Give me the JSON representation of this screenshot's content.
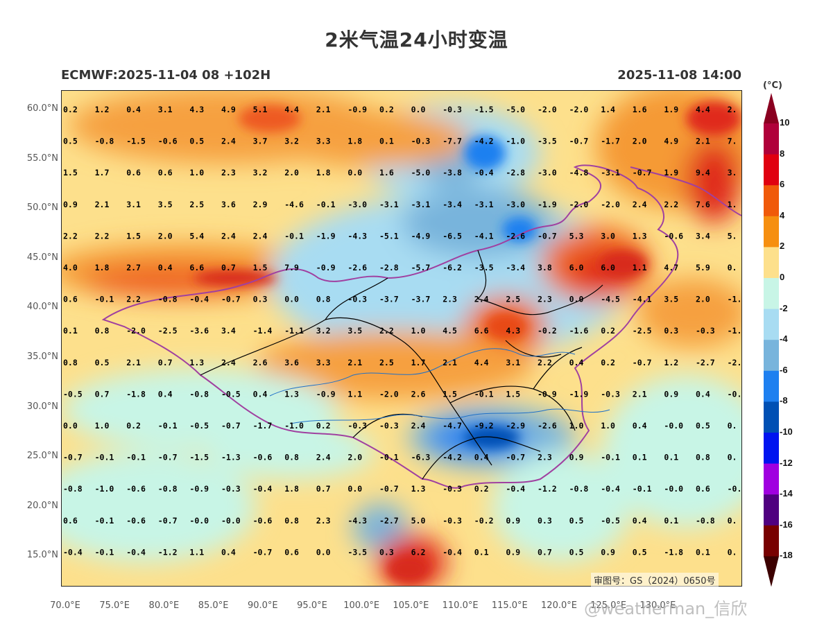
{
  "title": "2米气温24小时变温",
  "subtitle_left": "ECMWF:2025-11-04 08 +102H",
  "subtitle_right": "2025-11-08 14:00",
  "unit": "(°C)",
  "approval_number": "审图号：GS（2024）0650号",
  "watermark": "@weatherman_信欣",
  "lat_labels": [
    "60.0°N",
    "55.0°N",
    "50.0°N",
    "45.0°N",
    "40.0°N",
    "35.0°N",
    "30.0°N",
    "25.0°N",
    "20.0°N",
    "15.0°N"
  ],
  "lon_labels": [
    "70.0°E",
    "75.0°E",
    "80.0°E",
    "85.0°E",
    "90.0°E",
    "95.0°E",
    "100.0°E",
    "105.0°E",
    "110.0°E",
    "115.0°E",
    "120.0°E",
    "125.0°E",
    "130.0°E"
  ],
  "colorbar": {
    "labels": [
      "10",
      "8",
      "6",
      "4",
      "2",
      "0",
      "-2",
      "-4",
      "-6",
      "-8",
      "-10",
      "-12",
      "-14",
      "-16",
      "-18"
    ],
    "colors": [
      "#b0003a",
      "#e00010",
      "#f05a0a",
      "#f68f10",
      "#fde08c",
      "#c8f5e6",
      "#a8dcf2",
      "#78b4dc",
      "#1e80f0",
      "#0050b4",
      "#0014f0",
      "#a000e0",
      "#500080",
      "#780000"
    ],
    "top_color": "#8a0020",
    "bottom_color": "#3c0000"
  },
  "grid_values": [
    [
      "0.2",
      "1.2",
      "0.4",
      "3.1",
      "4.3",
      "4.9",
      "5.1",
      "4.4",
      "2.1",
      "-0.9",
      "0.2",
      "0.0",
      "-0.3",
      "-1.5",
      "-5.0",
      "-2.0",
      "-2.0",
      "1.4",
      "1.6",
      "1.9",
      "4.4",
      "2."
    ],
    [
      "0.5",
      "-0.8",
      "-1.5",
      "-0.6",
      "0.5",
      "2.4",
      "3.7",
      "3.2",
      "3.3",
      "1.8",
      "0.1",
      "-0.3",
      "-7.7",
      "-4.2",
      "-1.0",
      "-3.5",
      "-0.7",
      "-1.7",
      "2.0",
      "4.9",
      "2.1",
      "7."
    ],
    [
      "1.5",
      "1.7",
      "0.6",
      "0.6",
      "1.0",
      "2.3",
      "3.2",
      "2.0",
      "1.8",
      "0.0",
      "1.6",
      "-5.0",
      "-3.8",
      "-0.4",
      "-2.8",
      "-3.0",
      "-4.8",
      "-3.1",
      "-0.7",
      "1.9",
      "9.4",
      "3."
    ],
    [
      "0.9",
      "2.1",
      "3.1",
      "3.5",
      "2.5",
      "3.6",
      "2.9",
      "-4.6",
      "-0.1",
      "-3.0",
      "-3.1",
      "-3.1",
      "-3.4",
      "-3.1",
      "-3.0",
      "-1.9",
      "-2.0",
      "-2.0",
      "2.4",
      "2.2",
      "7.6",
      "1."
    ],
    [
      "2.2",
      "2.2",
      "1.5",
      "2.0",
      "5.4",
      "2.4",
      "2.4",
      "-0.1",
      "-1.9",
      "-4.3",
      "-5.1",
      "-4.9",
      "-6.5",
      "-4.1",
      "-2.6",
      "-0.7",
      "5.3",
      "3.0",
      "1.3",
      "-0.6",
      "3.4",
      "5."
    ],
    [
      "4.0",
      "1.8",
      "2.7",
      "0.4",
      "6.6",
      "0.7",
      "1.5",
      "7.9",
      "-0.9",
      "-2.6",
      "-2.8",
      "-5.7",
      "-6.2",
      "-3.5",
      "-3.4",
      "3.8",
      "6.0",
      "6.0",
      "1.1",
      "4.7",
      "5.9",
      "0."
    ],
    [
      "0.6",
      "-0.1",
      "2.2",
      "-0.8",
      "-0.4",
      "-0.7",
      "0.3",
      "0.0",
      "0.8",
      "-0.3",
      "-3.7",
      "-3.7",
      "2.3",
      "2.4",
      "2.5",
      "2.3",
      "0.0",
      "-4.5",
      "-4.1",
      "3.5",
      "2.0",
      "-1."
    ],
    [
      "0.1",
      "0.8",
      "-2.0",
      "-2.5",
      "-3.6",
      "3.4",
      "-1.4",
      "-1.1",
      "3.2",
      "3.5",
      "2.2",
      "1.0",
      "4.5",
      "6.6",
      "4.3",
      "-0.2",
      "-1.6",
      "0.2",
      "-2.5",
      "0.3",
      "-0.3",
      "-1."
    ],
    [
      "0.8",
      "0.5",
      "2.1",
      "0.7",
      "1.3",
      "2.4",
      "2.6",
      "3.6",
      "3.3",
      "2.1",
      "2.5",
      "1.7",
      "2.1",
      "4.4",
      "3.1",
      "2.2",
      "0.4",
      "0.2",
      "-0.7",
      "1.2",
      "-2.7",
      "-2."
    ],
    [
      "-0.5",
      "0.7",
      "-1.8",
      "0.4",
      "-0.8",
      "-0.5",
      "0.4",
      "1.3",
      "-0.9",
      "1.1",
      "-2.0",
      "2.6",
      "1.5",
      "-0.1",
      "1.5",
      "-0.9",
      "-1.9",
      "-0.3",
      "2.1",
      "0.9",
      "0.4",
      "-0."
    ],
    [
      "0.0",
      "1.0",
      "0.2",
      "-0.1",
      "-0.5",
      "-0.7",
      "-1.7",
      "-1.0",
      "0.2",
      "-0.3",
      "-0.3",
      "2.4",
      "-4.7",
      "-9.2",
      "-2.9",
      "-2.6",
      "1.0",
      "1.0",
      "0.4",
      "-0.0",
      "0.5",
      "0."
    ],
    [
      "-0.7",
      "-0.1",
      "-0.1",
      "-0.7",
      "-1.5",
      "-1.3",
      "-0.6",
      "0.8",
      "2.4",
      "2.0",
      "-0.1",
      "-6.3",
      "-4.2",
      "0.4",
      "-0.7",
      "2.3",
      "0.9",
      "-0.1",
      "0.1",
      "0.1",
      "0.8",
      "0."
    ],
    [
      "-0.8",
      "-1.0",
      "-0.6",
      "-0.8",
      "-0.9",
      "-0.3",
      "-0.4",
      "1.8",
      "0.7",
      "0.0",
      "-0.7",
      "1.3",
      "-0.3",
      "0.2",
      "-0.4",
      "-1.2",
      "-0.8",
      "-0.4",
      "-0.1",
      "-0.0",
      "0.6",
      "-0."
    ],
    [
      "0.6",
      "-0.1",
      "-0.6",
      "-0.7",
      "-0.0",
      "-0.0",
      "-0.6",
      "0.8",
      "2.3",
      "-4.3",
      "-2.7",
      "5.0",
      "-0.3",
      "-0.2",
      "0.9",
      "0.3",
      "0.5",
      "-0.5",
      "0.4",
      "0.1",
      "-0.8",
      "0."
    ],
    [
      "-0.4",
      "-0.1",
      "-0.4",
      "-1.2",
      "1.1",
      "0.4",
      "-0.7",
      "0.6",
      "0.0",
      "-3.5",
      "0.3",
      "6.2",
      "-0.4",
      "0.1",
      "0.9",
      "0.7",
      "0.5",
      "0.9",
      "0.5",
      "-1.8",
      "0.1",
      "0."
    ]
  ]
}
